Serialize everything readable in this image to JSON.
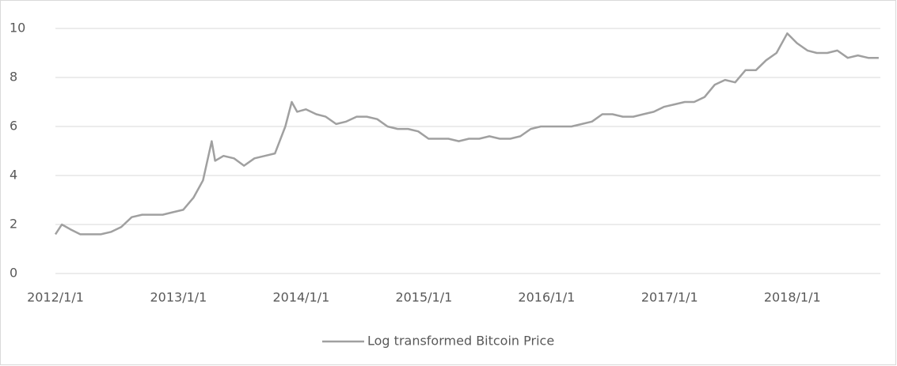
{
  "chart_data": {
    "type": "line",
    "x": [
      "2012-01-01",
      "2012-01-20",
      "2012-02-15",
      "2012-03-15",
      "2012-04-15",
      "2012-05-15",
      "2012-06-15",
      "2012-07-15",
      "2012-08-15",
      "2012-09-15",
      "2012-10-15",
      "2012-11-15",
      "2012-12-15",
      "2013-01-15",
      "2013-02-15",
      "2013-03-15",
      "2013-04-10",
      "2013-04-20",
      "2013-05-15",
      "2013-06-15",
      "2013-07-15",
      "2013-08-15",
      "2013-09-15",
      "2013-10-15",
      "2013-11-15",
      "2013-12-04",
      "2013-12-20",
      "2014-01-15",
      "2014-02-15",
      "2014-03-15",
      "2014-04-15",
      "2014-05-15",
      "2014-06-15",
      "2014-07-15",
      "2014-08-15",
      "2014-09-15",
      "2014-10-15",
      "2014-11-15",
      "2014-12-15",
      "2015-01-15",
      "2015-02-15",
      "2015-03-15",
      "2015-04-15",
      "2015-05-15",
      "2015-06-15",
      "2015-07-15",
      "2015-08-15",
      "2015-09-15",
      "2015-10-15",
      "2015-11-15",
      "2015-12-15",
      "2016-01-15",
      "2016-02-15",
      "2016-03-15",
      "2016-04-15",
      "2016-05-15",
      "2016-06-15",
      "2016-07-15",
      "2016-08-15",
      "2016-09-15",
      "2016-10-15",
      "2016-11-15",
      "2016-12-15",
      "2017-01-15",
      "2017-02-15",
      "2017-03-15",
      "2017-04-15",
      "2017-05-15",
      "2017-06-15",
      "2017-07-15",
      "2017-08-15",
      "2017-09-15",
      "2017-10-15",
      "2017-11-15",
      "2017-12-17",
      "2018-01-15",
      "2018-02-15",
      "2018-03-15",
      "2018-04-15",
      "2018-05-15",
      "2018-06-15",
      "2018-07-15",
      "2018-08-15",
      "2018-09-15"
    ],
    "series": [
      {
        "name": "Log transformed Bitcoin Price",
        "color": "#a0a0a0",
        "values": [
          1.6,
          2.0,
          1.8,
          1.6,
          1.6,
          1.6,
          1.7,
          1.9,
          2.3,
          2.4,
          2.4,
          2.4,
          2.5,
          2.6,
          3.1,
          3.8,
          5.4,
          4.6,
          4.8,
          4.7,
          4.4,
          4.7,
          4.8,
          4.9,
          6.0,
          7.0,
          6.6,
          6.7,
          6.5,
          6.4,
          6.1,
          6.2,
          6.4,
          6.4,
          6.3,
          6.0,
          5.9,
          5.9,
          5.8,
          5.5,
          5.5,
          5.5,
          5.4,
          5.5,
          5.5,
          5.6,
          5.5,
          5.5,
          5.6,
          5.9,
          6.0,
          6.0,
          6.0,
          6.0,
          6.1,
          6.2,
          6.5,
          6.5,
          6.4,
          6.4,
          6.5,
          6.6,
          6.8,
          6.9,
          7.0,
          7.0,
          7.2,
          7.7,
          7.9,
          7.8,
          8.3,
          8.3,
          8.7,
          9.0,
          9.8,
          9.4,
          9.1,
          9.0,
          9.0,
          9.1,
          8.8,
          8.9,
          8.8,
          8.8
        ]
      }
    ],
    "xlim": [
      "2012-01-01",
      "2018-09-20"
    ],
    "xticks": [
      {
        "value": "2012-01-01",
        "label": "2012/1/1"
      },
      {
        "value": "2013-01-01",
        "label": "2013/1/1"
      },
      {
        "value": "2014-01-01",
        "label": "2014/1/1"
      },
      {
        "value": "2015-01-01",
        "label": "2015/1/1"
      },
      {
        "value": "2016-01-01",
        "label": "2016/1/1"
      },
      {
        "value": "2017-01-01",
        "label": "2017/1/1"
      },
      {
        "value": "2018-01-01",
        "label": "2018/1/1"
      }
    ],
    "ylim": [
      0,
      10
    ],
    "yticks": [
      0,
      2,
      4,
      6,
      8,
      10
    ],
    "grid": true,
    "legend": "bottom"
  }
}
